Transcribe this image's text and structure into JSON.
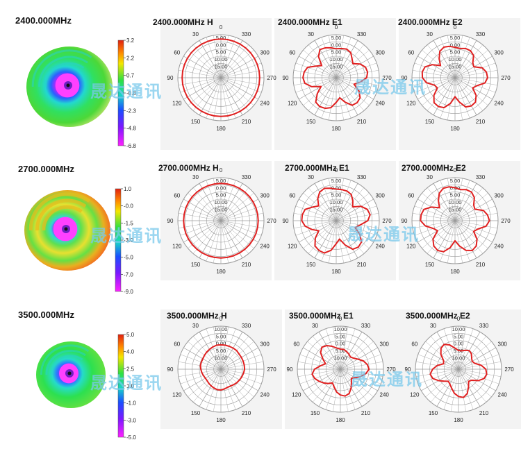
{
  "watermark": "晟达通讯",
  "rows": [
    {
      "frequency": "2400.000MHz",
      "colorbar": {
        "ticks": [
          "3.2",
          "2.2",
          "0.7",
          "-0.8",
          "-2.3",
          "-4.8",
          "-6.8"
        ]
      },
      "plots": [
        {
          "title": "2400.000MHz  H",
          "rings": [
            "5.00",
            "0.00",
            "5.00",
            "10.00",
            "15.00"
          ],
          "r": [
            2,
            2,
            2,
            2,
            2,
            2,
            2,
            2,
            2,
            2,
            2,
            2,
            2,
            2,
            2,
            2,
            2,
            2,
            2,
            2,
            2,
            2,
            2,
            2,
            2,
            2,
            2,
            2,
            2,
            2,
            2,
            2,
            2,
            2,
            2,
            2
          ]
        },
        {
          "title": "2400.000MHz  E1",
          "rings": [
            "5.00",
            "0.00",
            "5.00",
            "10.00",
            "15.00"
          ],
          "r": [
            -4.8,
            -3.8,
            -2.8,
            -2.3,
            -5.8,
            -11.8,
            -8.8,
            -3.8,
            -2.3,
            -1.8,
            -2.8,
            -6.8,
            -12.8,
            -7.8,
            -2.8,
            -1.8,
            -2.3,
            -3.8,
            -7.8,
            -10.8,
            -6.8,
            -2.8,
            -2.3,
            -3.3,
            -6.8,
            -11.8,
            -7.8,
            -3.8,
            -2.8,
            -3.3,
            -5.8,
            -9.8,
            -7.8,
            -4.8,
            -3.8,
            -4.3
          ]
        },
        {
          "title": "2400.000MHz  E2",
          "rings": [
            "5.00",
            "0.00",
            "5.00",
            "10.00",
            "15.00"
          ],
          "r": [
            -3.8,
            -2.8,
            -2.3,
            -3.8,
            -7.8,
            -11.8,
            -6.8,
            -2.8,
            -1.8,
            -2.3,
            -4.8,
            -9.8,
            -10.8,
            -5.8,
            -2.3,
            -1.8,
            -2.8,
            -6.8,
            -11.8,
            -7.8,
            -3.3,
            -2.3,
            -2.8,
            -5.8,
            -10.8,
            -8.8,
            -3.8,
            -2.3,
            -2.8,
            -4.8,
            -9.8,
            -8.8,
            -4.8,
            -3.3,
            -3.3,
            -4.3
          ]
        }
      ]
    },
    {
      "frequency": "2700.000MHz",
      "colorbar": {
        "ticks": [
          "1.0",
          "-0.0",
          "-1.5",
          "-3.0",
          "-5.0",
          "-7.0",
          "-9.0"
        ]
      },
      "plots": [
        {
          "title": "2700.000MHz  H",
          "rings": [
            "5.00",
            "0.00",
            "5.00",
            "10.00",
            "15.00"
          ],
          "r": [
            1,
            1,
            1,
            1,
            1,
            1,
            1,
            1,
            1,
            1,
            1,
            1,
            1,
            1,
            1,
            1,
            1,
            1,
            1,
            1,
            1,
            1,
            1,
            1,
            1,
            1,
            1,
            1,
            1,
            1,
            1,
            1,
            1,
            1,
            1,
            1
          ]
        },
        {
          "title": "2700.000MHz  E1",
          "rings": [
            "5.00",
            "0.00",
            "5.00",
            "10.00",
            "15.00"
          ],
          "r": [
            -3,
            -2,
            -1,
            -2,
            -5,
            -9,
            -6,
            -2,
            -1,
            -1,
            -3,
            -7,
            -11,
            -6,
            -2,
            -1,
            -1,
            -4,
            -9,
            -12,
            -7,
            -2,
            -1,
            -2,
            -6,
            -11,
            -8,
            -3,
            -1,
            -2,
            -5,
            -10,
            -7,
            -4,
            -3,
            -3
          ]
        },
        {
          "title": "2700.000MHz  E2",
          "rings": [
            "5.00",
            "0.00",
            "5.00",
            "10.00",
            "15.00"
          ],
          "r": [
            -2,
            -1,
            -1,
            -3,
            -7,
            -11,
            -6,
            -2,
            -1,
            -1,
            -4,
            -9,
            -11,
            -5,
            -2,
            -1,
            -2,
            -6,
            -11,
            -7,
            -3,
            -1,
            -2,
            -5,
            -10,
            -8,
            -3,
            -1,
            -2,
            -4,
            -9,
            -8,
            -4,
            -2,
            -2,
            -3
          ]
        }
      ]
    },
    {
      "frequency": "3500.000MHz",
      "colorbar": {
        "ticks": [
          "5.0",
          "4.0",
          "2.5",
          "1.0",
          "-1.0",
          "-3.0",
          "-5.0"
        ]
      },
      "plots": [
        {
          "title": "3500.000MHz  H",
          "rings": [
            "10.00",
            "5.00",
            "0.00",
            "5.00",
            "10.00"
          ],
          "r": [
            -3,
            -3,
            -3.5,
            -4,
            -4.5,
            -5,
            -5.5,
            -5.5,
            -5.5,
            -6,
            -6.5,
            -7,
            -7.5,
            -7.5,
            -7,
            -6.5,
            -6,
            -5.5,
            -5.5,
            -6,
            -6.5,
            -6.5,
            -6,
            -5.5,
            -5,
            -4.5,
            -4,
            -3.5,
            -3.5,
            -3.5,
            -3.5,
            -3.5,
            -3,
            -3,
            -3,
            -3
          ]
        },
        {
          "title": "3500.000MHz  E1",
          "rings": [
            "10.00",
            "5.00",
            "0.00",
            "5.00",
            "10.00"
          ],
          "r": [
            -6,
            -5,
            -3,
            -1,
            0,
            -2,
            -6,
            -9,
            -6,
            -2,
            0,
            -1,
            -3,
            -5,
            -7,
            -9,
            -7,
            -4,
            -2,
            -1,
            -2,
            -5,
            -8,
            -10,
            -8,
            -5,
            -2,
            0,
            -1,
            -3,
            -6,
            -8,
            -9,
            -8,
            -7,
            -6
          ]
        },
        {
          "title": "3500.000MHz  E2",
          "rings": [
            "10.00",
            "5.00",
            "0.00",
            "5.00",
            "10.00"
          ],
          "r": [
            -7,
            -5,
            -2,
            0,
            -1,
            -4,
            -8,
            -9,
            -5,
            -2,
            0,
            -1,
            -4,
            -7,
            -9,
            -8,
            -6,
            -3,
            -1,
            0,
            -2,
            -6,
            -9,
            -8,
            -4,
            -1,
            0,
            -1,
            -4,
            -8,
            -9,
            -8,
            -6,
            -5,
            -6,
            -7
          ]
        }
      ]
    }
  ],
  "angle_labels": [
    "0",
    "30",
    "60",
    "90",
    "120",
    "150",
    "180",
    "210",
    "240",
    "270",
    "300",
    "330"
  ],
  "colors": {
    "pattern": "#e02020",
    "grid": "#9a9a9a",
    "spiral_bg": "#ffffff"
  }
}
